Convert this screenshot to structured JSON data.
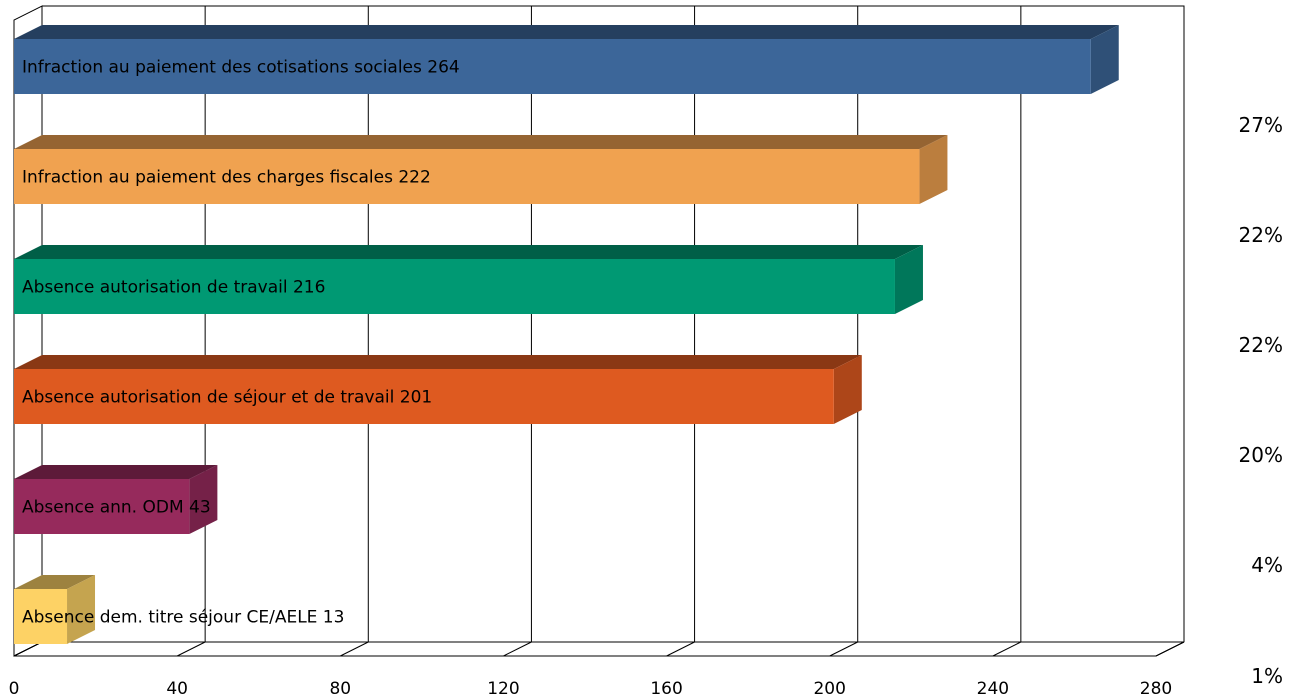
{
  "chart_data": {
    "type": "bar",
    "orientation": "horizontal",
    "three_d": true,
    "grid": true,
    "xlim": [
      0,
      280
    ],
    "xticks": [
      "0",
      "40",
      "80",
      "120",
      "160",
      "200",
      "240",
      "280"
    ],
    "bars": [
      {
        "label": "Infraction au paiement des cotisations sociales 264",
        "value": 264,
        "color": "#3c6699",
        "share": "27%"
      },
      {
        "label": "Infraction au paiement des charges fiscales 222",
        "value": 222,
        "color": "#f0a250",
        "share": "22%"
      },
      {
        "label": "Absence autorisation de travail 216",
        "value": 216,
        "color": "#009973",
        "share": "22%"
      },
      {
        "label": "Absence autorisation de séjour  et de travail 201",
        "value": 201,
        "color": "#de5a20",
        "share": "20%"
      },
      {
        "label": "Absence ann. ODM 43",
        "value": 43,
        "color": "#962a5c",
        "share": "4%"
      },
      {
        "label": "Absence dem. titre séjour CE/AELE 13",
        "value": 13,
        "color": "#fdd265",
        "share": "1%"
      }
    ],
    "right_labels": [
      "27%",
      "22%",
      "22%",
      "20%",
      "4%",
      "1%"
    ]
  }
}
